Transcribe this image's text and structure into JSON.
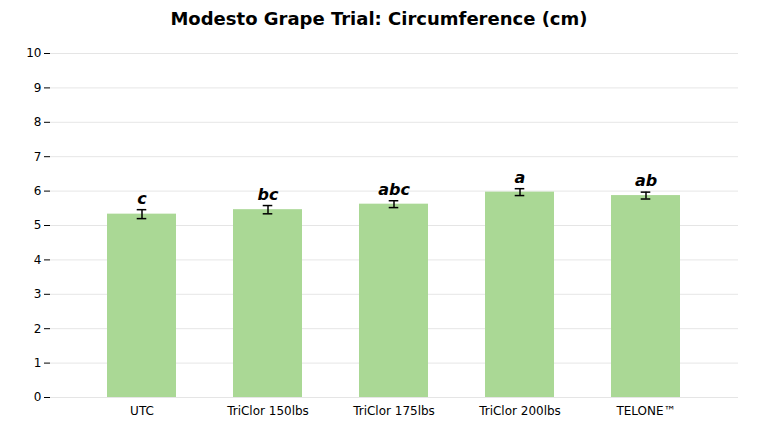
{
  "chart_data": {
    "type": "bar",
    "title": "Modesto Grape Trial: Circumference (cm)",
    "categories": [
      "UTC",
      "TriClor 150lbs",
      "TriClor 175lbs",
      "TriClor 200lbs",
      "TELONE™"
    ],
    "values": [
      5.33,
      5.46,
      5.62,
      5.97,
      5.87
    ],
    "errors": [
      0.13,
      0.12,
      0.1,
      0.1,
      0.1
    ],
    "stat_labels": [
      "c",
      "bc",
      "abc",
      "a",
      "ab"
    ],
    "color": "#aad895",
    "ylim": [
      0,
      10
    ],
    "yticks": [
      0,
      1,
      2,
      3,
      4,
      5,
      6,
      7,
      8,
      9,
      10
    ],
    "grid": true
  }
}
